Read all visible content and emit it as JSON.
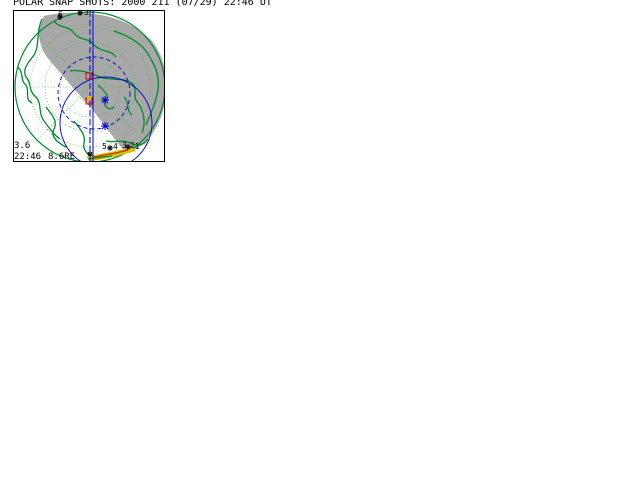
{
  "title": "POLAR SNAP SHOTS: 2000 211 (07/29) 22:46 UT",
  "panel": {
    "scale_label": "3.6",
    "time_label": "22:46",
    "distance_label": "8.6RE",
    "marker_labels": [
      "6",
      "3",
      "5",
      "4",
      "3",
      "2",
      "1"
    ]
  },
  "colors": {
    "shade": "#a8a8a8",
    "coast": "#008c2e",
    "grid": "#3fbf3f",
    "orbit": "#0000cc",
    "box": "#e00000",
    "ink": "#000000",
    "aurora": "#d8c000"
  },
  "icons": {
    "satellite_marker": "asterisk-icon",
    "station_box": "square-icon"
  }
}
